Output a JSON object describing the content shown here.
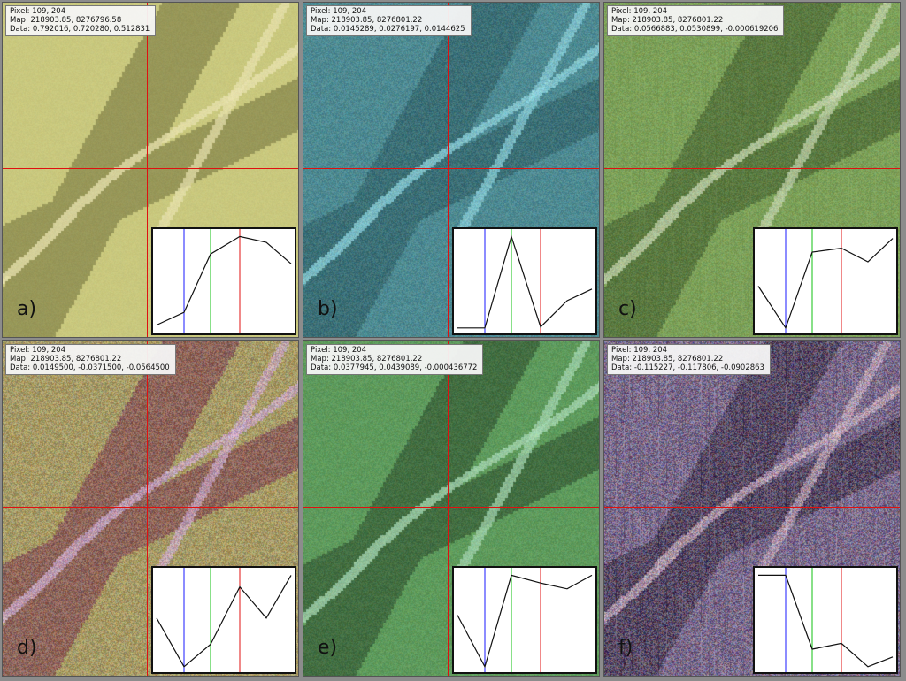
{
  "panels": [
    {
      "id": "a",
      "label": "a)",
      "pixel": "Pixel: 109, 204",
      "map": "Map: 218903.85, 8276796.58",
      "data": "Data: 0.792016, 0.720280, 0.512831",
      "palette": {
        "base": "#c9c87e",
        "dark": "#6f6f3a",
        "light": "#e9e3b0",
        "noise": 10
      },
      "spectrum": [
        0.05,
        0.18,
        0.78,
        0.96,
        0.9,
        0.68
      ]
    },
    {
      "id": "b",
      "label": "b)",
      "pixel": "Pixel: 109, 204",
      "map": "Map: 218903.85, 8276801.22",
      "data": "Data: 0.0145289, 0.0276197, 0.0144625",
      "palette": {
        "base": "#4e8a92",
        "dark": "#2d5a60",
        "light": "#8ed2dc",
        "noise": 34
      },
      "spectrum": [
        0.02,
        0.02,
        0.96,
        0.03,
        0.3,
        0.42
      ]
    },
    {
      "id": "c",
      "label": "c)",
      "pixel": "Pixel: 109, 204",
      "map": "Map: 218903.85, 8276801.22",
      "data": "Data: 0.0566883, 0.0530899, -0.000619206",
      "palette": {
        "base": "#7ca059",
        "dark": "#3f5a2d",
        "light": "#c6d6b0",
        "noise": 32
      },
      "spectrum": [
        0.45,
        0.02,
        0.8,
        0.84,
        0.7,
        0.94
      ]
    },
    {
      "id": "d",
      "label": "d)",
      "pixel": "Pixel: 109, 204",
      "map": "Map: 218903.85, 8276801.22",
      "data": "Data: 0.0149500, -0.0371500, -0.0564500",
      "palette": {
        "base": "#a69a66",
        "dark": "#7a3a52",
        "light": "#c9a8c8",
        "noise": 60
      },
      "spectrum": [
        0.52,
        0.02,
        0.25,
        0.84,
        0.52,
        0.96
      ]
    },
    {
      "id": "e",
      "label": "e)",
      "pixel": "Pixel: 109, 204",
      "map": "Map: 218903.85, 8276801.22",
      "data": "Data: 0.0377945, 0.0439089, -0.000436772",
      "palette": {
        "base": "#5e9a5c",
        "dark": "#2c4a2c",
        "light": "#a8d8b4",
        "noise": 26
      },
      "spectrum": [
        0.55,
        0.02,
        0.96,
        0.88,
        0.82,
        0.96
      ]
    },
    {
      "id": "f",
      "label": "f)",
      "pixel": "Pixel: 109, 204",
      "map": "Map: 218903.85, 8276801.22",
      "data": "Data: -0.115227, -0.117806, -0.0902863",
      "palette": {
        "base": "#7a6a8a",
        "dark": "#3c3046",
        "light": "#c0a8b8",
        "noise": 90
      },
      "spectrum": [
        0.96,
        0.96,
        0.2,
        0.26,
        0.02,
        0.12
      ]
    }
  ],
  "colors": {
    "blue_marker": "#1a1aff",
    "green_marker": "#10c010",
    "red_marker": "#e01010",
    "crosshair": "#e01010"
  }
}
